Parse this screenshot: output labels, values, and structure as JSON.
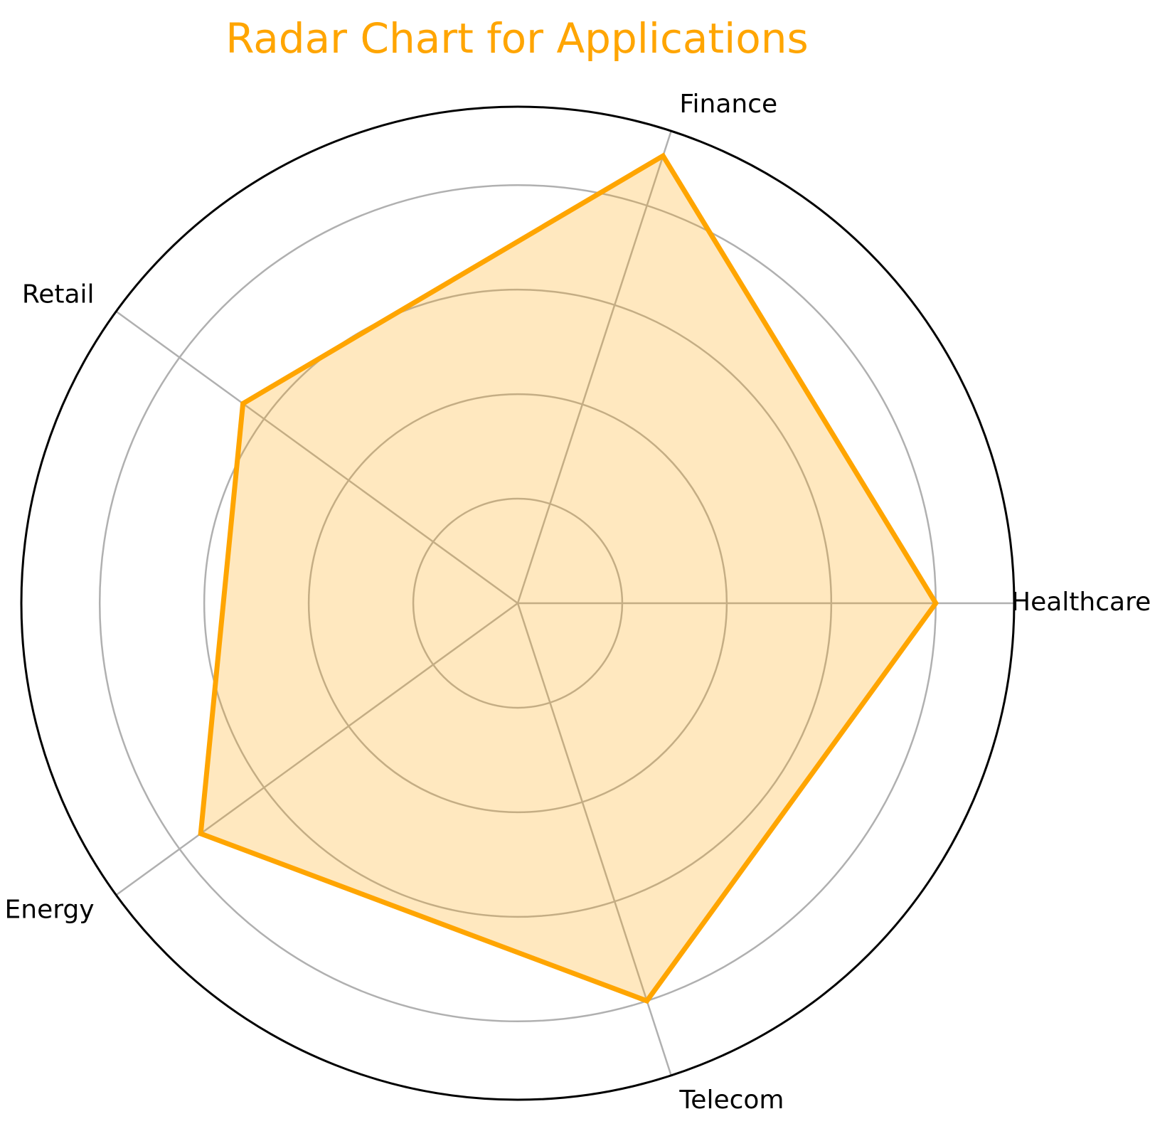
{
  "chart_data": {
    "type": "radar",
    "title": "Radar Chart for Applications",
    "categories": [
      "Healthcare",
      "Finance",
      "Retail",
      "Energy",
      "Telecom"
    ],
    "series": [
      {
        "values": [
          80,
          90,
          65,
          75,
          80
        ]
      }
    ],
    "rlim": [
      0,
      95
    ],
    "grid_rings": [
      20,
      40,
      60,
      80
    ],
    "grid": true,
    "colors": {
      "title": "#FFA500",
      "line": "#FFA500",
      "fill": "#FFA500",
      "grid": "#b0b0b0",
      "frame": "#000000"
    }
  }
}
